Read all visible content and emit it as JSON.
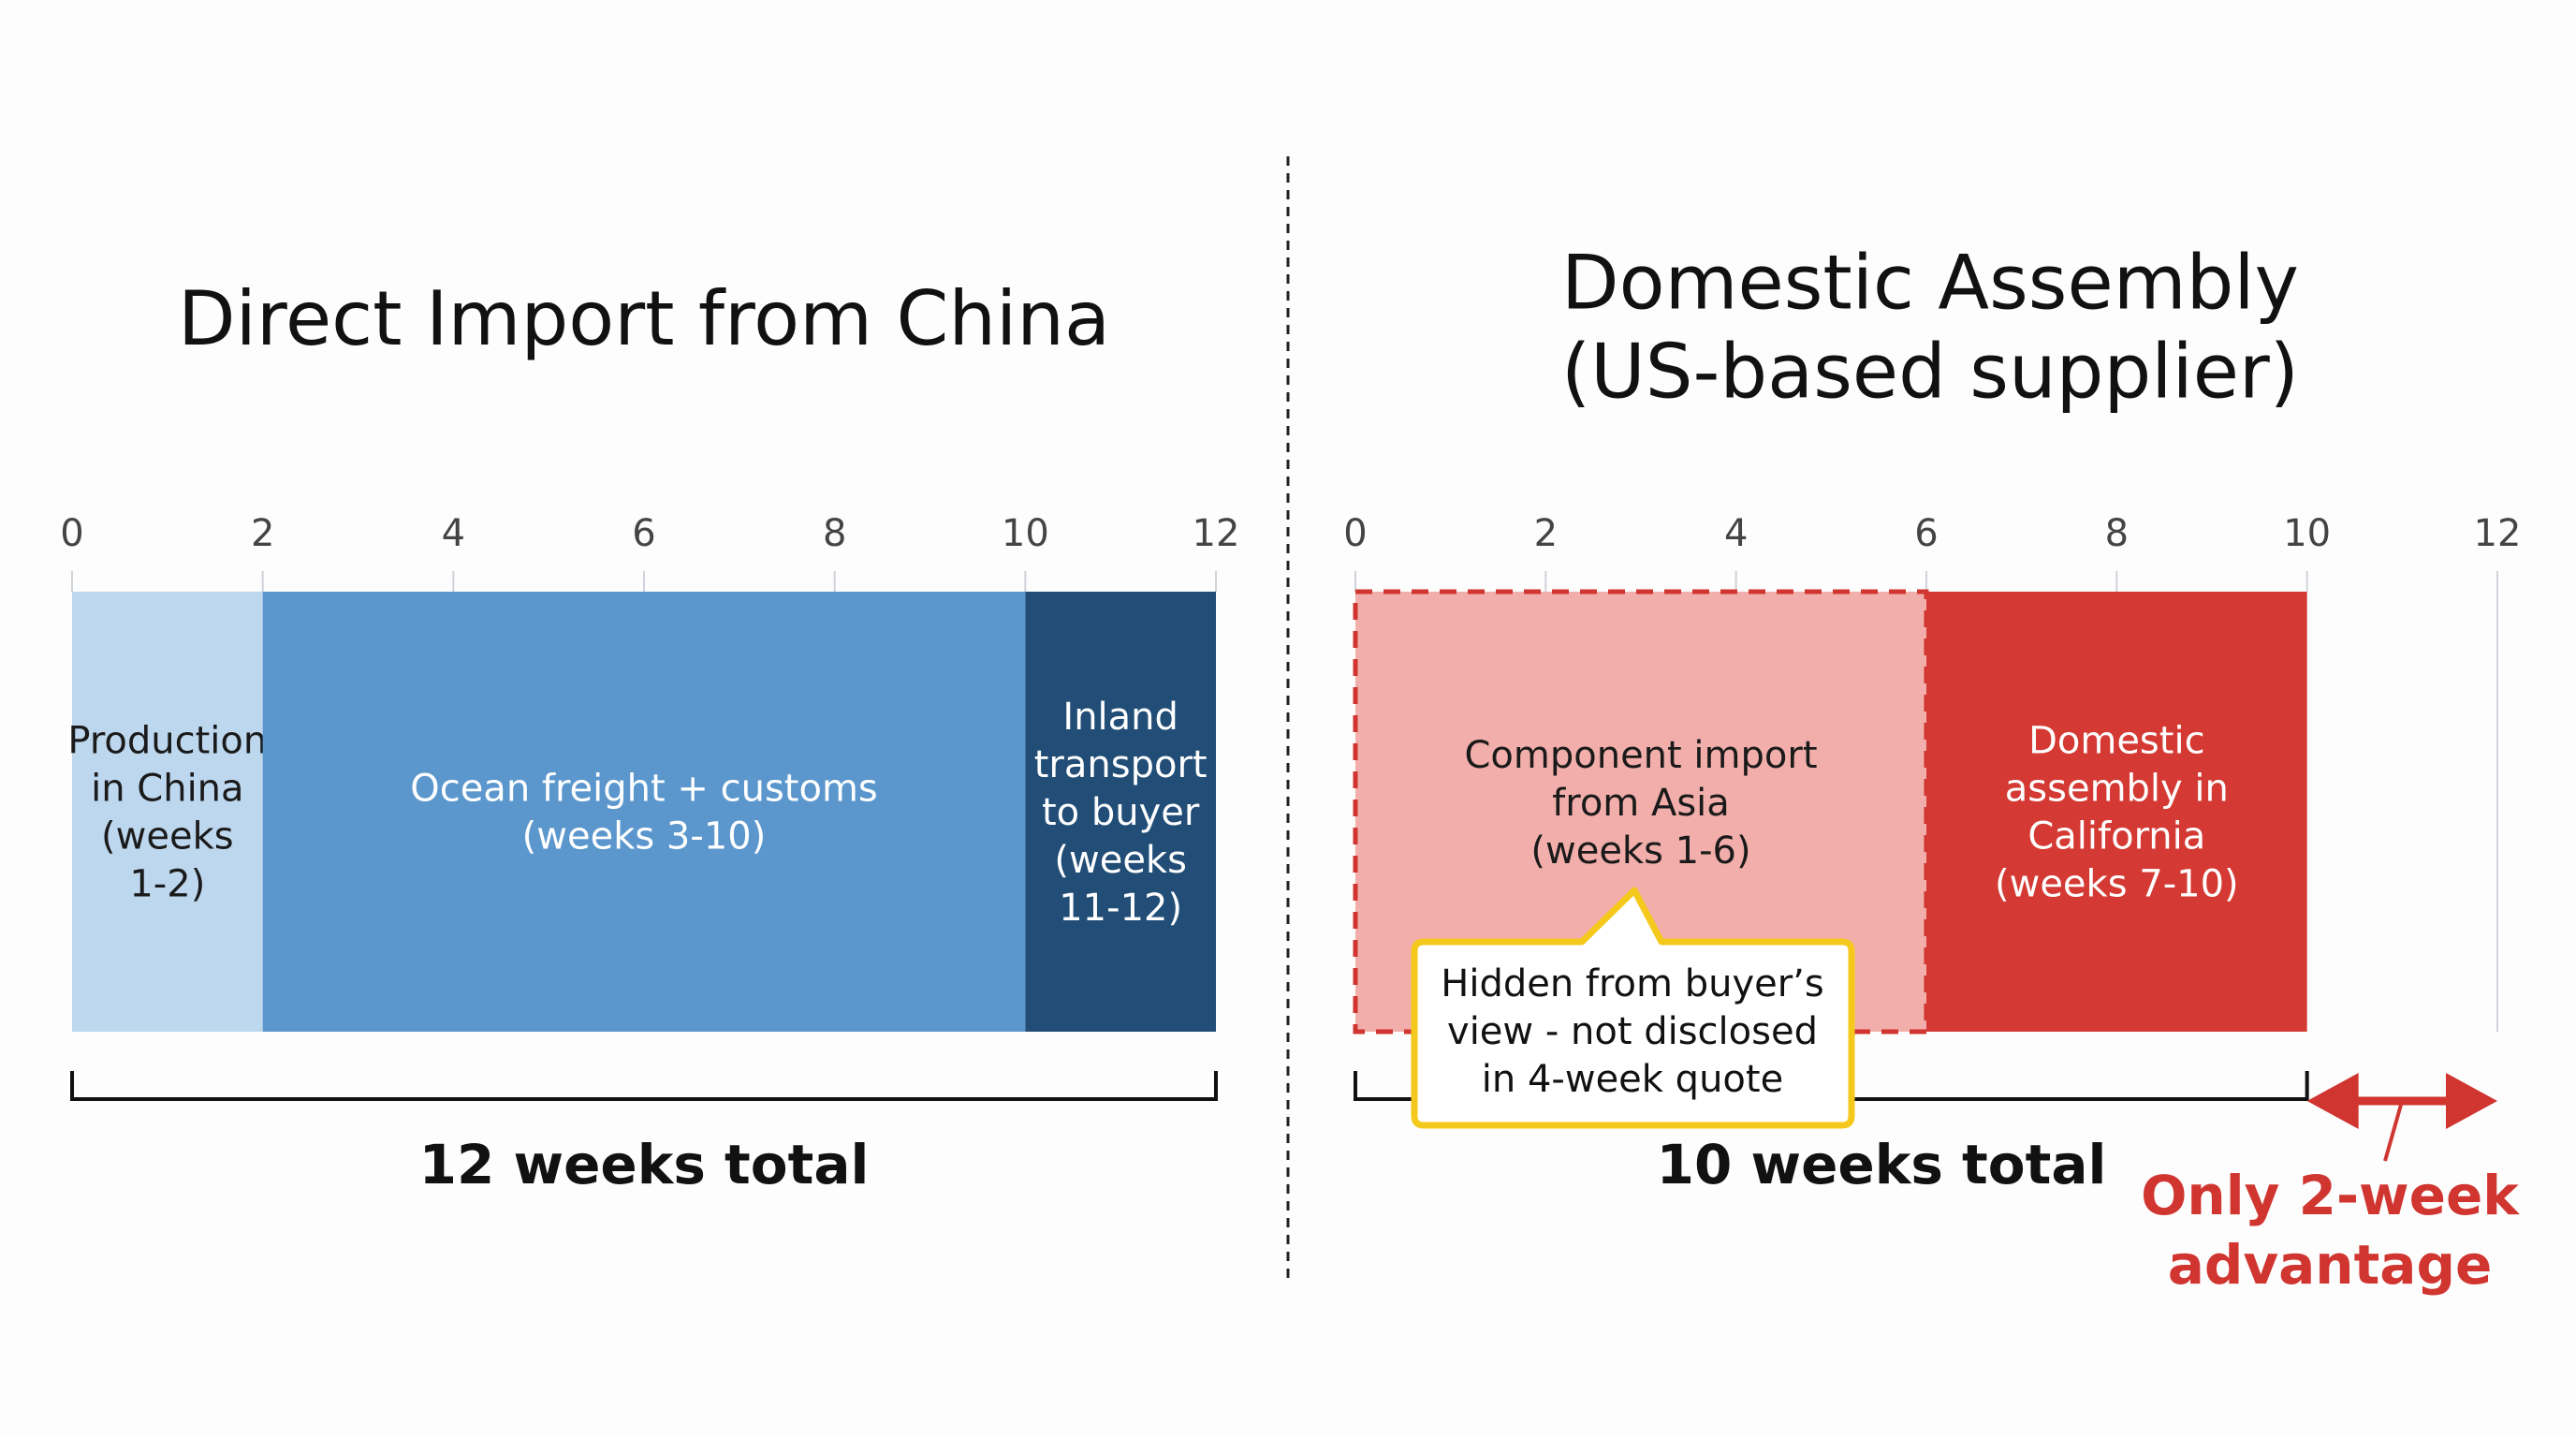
{
  "chart_data": [
    {
      "type": "bar",
      "orientation": "horizontal-stacked-timeline",
      "title": "Direct Import from China",
      "xlim": [
        0,
        12
      ],
      "ticks": [
        0,
        2,
        4,
        6,
        8,
        10,
        12
      ],
      "segments": [
        {
          "label": [
            "Production",
            "in China",
            "(weeks",
            "1-2)"
          ],
          "start": 0,
          "end": 2,
          "color": "#bdd7ee",
          "text_color": "#1a1a1a",
          "dashed": false
        },
        {
          "label": [
            "Ocean freight + customs",
            "(weeks 3-10)"
          ],
          "start": 2,
          "end": 10,
          "color": "#5b97cd",
          "text_color": "#ffffff",
          "dashed": false
        },
        {
          "label": [
            "Inland",
            "transport",
            "to buyer",
            "(weeks",
            "11-12)"
          ],
          "start": 10,
          "end": 12,
          "color": "#214d76",
          "text_color": "#ffffff",
          "dashed": false
        }
      ],
      "bracket": {
        "start": 0,
        "end": 12,
        "label": "12 weeks total"
      }
    },
    {
      "type": "bar",
      "orientation": "horizontal-stacked-timeline",
      "title": [
        "Domestic Assembly",
        "(US-based supplier)"
      ],
      "xlim": [
        0,
        12
      ],
      "ticks": [
        0,
        2,
        4,
        6,
        8,
        10,
        12
      ],
      "segments": [
        {
          "label": [
            "Component import",
            "from Asia",
            "(weeks 1-6)"
          ],
          "start": 0,
          "end": 6,
          "color": "#f1aeaa",
          "text_color": "#1a1a1a",
          "dashed": true
        },
        {
          "label": [
            "Domestic",
            "assembly in",
            "California",
            "(weeks 7-10)"
          ],
          "start": 6,
          "end": 10,
          "color": "#d43a33",
          "text_color": "#ffffff",
          "dashed": false
        }
      ],
      "bracket": {
        "start": 0,
        "end": 10,
        "label": "10 weeks total"
      },
      "callout": {
        "text": [
          "Hidden from buyer’s",
          "view - not disclosed",
          "in 4-week quote"
        ],
        "border_color": "#f4c91c"
      },
      "advantage": {
        "start": 10,
        "end": 12,
        "label": [
          "Only 2-week",
          "advantage"
        ],
        "color": "#d03530"
      }
    }
  ]
}
